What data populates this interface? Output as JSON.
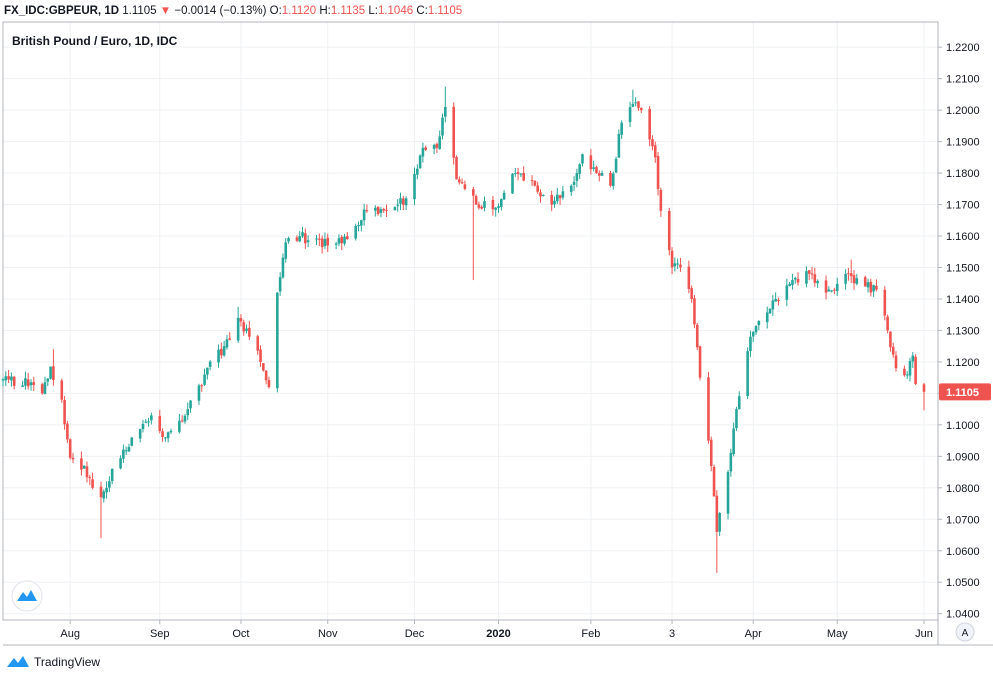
{
  "header": {
    "symbol": "FX_IDC:GBPEUR, 1D",
    "last": "1.1105",
    "change_arrow": "▼",
    "change": "−0.0014 (−0.13%)",
    "open_label": "O:",
    "open": "1.1120",
    "high_label": "H:",
    "high": "1.1135",
    "low_label": "L:",
    "low": "1.1046",
    "close_label": "C:",
    "close": "1.1105"
  },
  "footer": {
    "brand": "TradingView",
    "brand_icon": "tradingview-logo-icon"
  },
  "axis_corner": {
    "label": "A"
  },
  "colors": {
    "up": "#26a69a",
    "down": "#ef5350",
    "price_tag": "#ef5350",
    "grid": "#eef0f3"
  },
  "chart_data": {
    "type": "candlestick",
    "title": "British Pound / Euro, 1D, IDC",
    "price_tag": "1.1105",
    "ylim": [
      1.038,
      1.228
    ],
    "y_ticks": [
      "1.2200",
      "1.2100",
      "1.2000",
      "1.1900",
      "1.1800",
      "1.1700",
      "1.1600",
      "1.1500",
      "1.1400",
      "1.1300",
      "1.1200",
      "1.1100",
      "1.1000",
      "1.0900",
      "1.0800",
      "1.0700",
      "1.0600",
      "1.0500",
      "1.0400"
    ],
    "x_ticks": [
      {
        "label": "Aug",
        "date": "2019-08-01"
      },
      {
        "label": "Sep",
        "date": "2019-09-02"
      },
      {
        "label": "Oct",
        "date": "2019-10-01"
      },
      {
        "label": "Nov",
        "date": "2019-11-01"
      },
      {
        "label": "Dec",
        "date": "2019-12-02"
      },
      {
        "label": "2020",
        "date": "2020-01-01",
        "bold": true
      },
      {
        "label": "Feb",
        "date": "2020-02-03"
      },
      {
        "label": "3",
        "date": "2020-03-03"
      },
      {
        "label": "Apr",
        "date": "2020-04-01"
      },
      {
        "label": "May",
        "date": "2020-05-01"
      },
      {
        "label": "Jun",
        "date": "2020-06-01"
      }
    ],
    "x_range": [
      "2019-07-08",
      "2020-06-06"
    ],
    "waypoints": [
      {
        "date": "2019-07-08",
        "close": 1.1145
      },
      {
        "date": "2019-07-18",
        "close": 1.1135
      },
      {
        "date": "2019-07-22",
        "close": 1.11
      },
      {
        "date": "2019-07-25",
        "close": 1.1185
      },
      {
        "date": "2019-07-29",
        "close": 1.108
      },
      {
        "date": "2019-08-01",
        "close": 1.0895
      },
      {
        "date": "2019-08-06",
        "close": 1.087
      },
      {
        "date": "2019-08-09",
        "close": 1.08
      },
      {
        "date": "2019-08-12",
        "close": 1.077
      },
      {
        "date": "2019-08-16",
        "close": 1.086
      },
      {
        "date": "2019-08-23",
        "close": 1.096
      },
      {
        "date": "2019-08-30",
        "close": 1.103
      },
      {
        "date": "2019-09-04",
        "close": 1.096
      },
      {
        "date": "2019-09-12",
        "close": 1.105
      },
      {
        "date": "2019-09-18",
        "close": 1.116
      },
      {
        "date": "2019-09-25",
        "close": 1.125
      },
      {
        "date": "2019-09-30",
        "close": 1.134
      },
      {
        "date": "2019-10-04",
        "close": 1.128
      },
      {
        "date": "2019-10-08",
        "close": 1.12
      },
      {
        "date": "2019-10-11",
        "close": 1.112
      },
      {
        "date": "2019-10-14",
        "close": 1.142
      },
      {
        "date": "2019-10-17",
        "close": 1.158
      },
      {
        "date": "2019-10-22",
        "close": 1.16
      },
      {
        "date": "2019-11-01",
        "close": 1.157
      },
      {
        "date": "2019-11-08",
        "close": 1.159
      },
      {
        "date": "2019-11-15",
        "close": 1.168
      },
      {
        "date": "2019-11-22",
        "close": 1.168
      },
      {
        "date": "2019-11-29",
        "close": 1.172
      },
      {
        "date": "2019-12-05",
        "close": 1.188
      },
      {
        "date": "2019-12-10",
        "close": 1.188
      },
      {
        "date": "2019-12-13",
        "close": 1.201
      },
      {
        "date": "2019-12-17",
        "close": 1.178
      },
      {
        "date": "2019-12-24",
        "close": 1.17
      },
      {
        "date": "2019-12-31",
        "close": 1.169
      },
      {
        "date": "2020-01-07",
        "close": 1.18
      },
      {
        "date": "2020-01-14",
        "close": 1.176
      },
      {
        "date": "2020-01-20",
        "close": 1.17
      },
      {
        "date": "2020-01-27",
        "close": 1.176
      },
      {
        "date": "2020-01-31",
        "close": 1.186
      },
      {
        "date": "2020-02-05",
        "close": 1.18
      },
      {
        "date": "2020-02-10",
        "close": 1.176
      },
      {
        "date": "2020-02-14",
        "close": 1.196
      },
      {
        "date": "2020-02-18",
        "close": 1.202
      },
      {
        "date": "2020-02-21",
        "close": 1.2
      },
      {
        "date": "2020-02-26",
        "close": 1.185
      },
      {
        "date": "2020-02-28",
        "close": 1.168
      },
      {
        "date": "2020-03-03",
        "close": 1.15
      },
      {
        "date": "2020-03-06",
        "close": 1.15
      },
      {
        "date": "2020-03-10",
        "close": 1.14
      },
      {
        "date": "2020-03-13",
        "close": 1.115
      },
      {
        "date": "2020-03-16",
        "close": 1.095
      },
      {
        "date": "2020-03-19",
        "close": 1.066
      },
      {
        "date": "2020-03-20",
        "close": 1.072
      },
      {
        "date": "2020-03-23",
        "close": 1.085
      },
      {
        "date": "2020-03-26",
        "close": 1.105
      },
      {
        "date": "2020-03-31",
        "close": 1.128
      },
      {
        "date": "2020-04-03",
        "close": 1.133
      },
      {
        "date": "2020-04-09",
        "close": 1.14
      },
      {
        "date": "2020-04-15",
        "close": 1.146
      },
      {
        "date": "2020-04-21",
        "close": 1.148
      },
      {
        "date": "2020-04-27",
        "close": 1.142
      },
      {
        "date": "2020-05-04",
        "close": 1.148
      },
      {
        "date": "2020-05-11",
        "close": 1.144
      },
      {
        "date": "2020-05-15",
        "close": 1.143
      },
      {
        "date": "2020-05-19",
        "close": 1.13
      },
      {
        "date": "2020-05-22",
        "close": 1.118
      },
      {
        "date": "2020-05-26",
        "close": 1.116
      },
      {
        "date": "2020-05-28",
        "close": 1.122
      },
      {
        "date": "2020-05-29",
        "close": 1.113
      },
      {
        "date": "2020-06-01",
        "close": 1.1105
      }
    ],
    "extremes": [
      {
        "date": "2019-07-26",
        "high": 1.124
      },
      {
        "date": "2019-08-12",
        "low": 1.064
      },
      {
        "date": "2019-09-30",
        "high": 1.1375
      },
      {
        "date": "2019-12-13",
        "high": 1.2075
      },
      {
        "date": "2019-12-23",
        "low": 1.146
      },
      {
        "date": "2020-02-18",
        "high": 1.2065
      },
      {
        "date": "2020-03-19",
        "low": 1.053
      },
      {
        "date": "2020-05-06",
        "high": 1.1525
      },
      {
        "date": "2020-06-01",
        "low": 1.1046
      }
    ]
  }
}
